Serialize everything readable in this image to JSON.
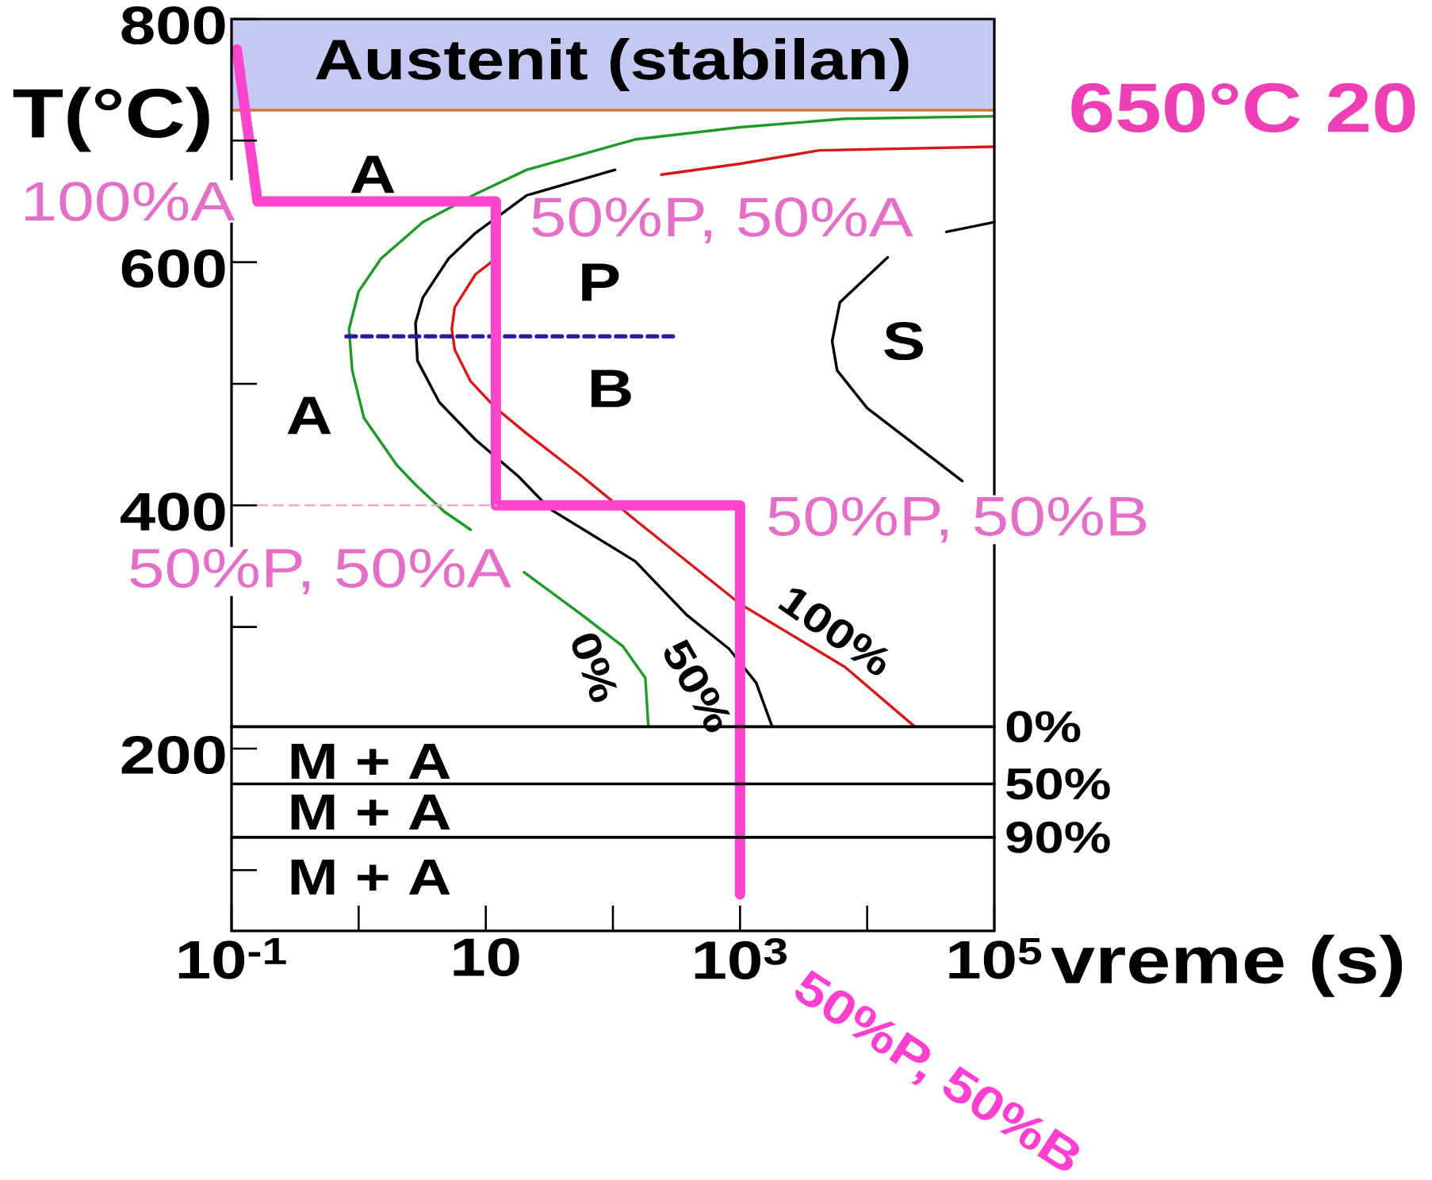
{
  "chart_data": {
    "type": "line",
    "xlabel": "vreme (s)",
    "ylabel": "T(°C)",
    "log": "x",
    "xlim": [
      0.1,
      100000
    ],
    "ylim": [
      50,
      800
    ],
    "xticks": [
      {
        "value": 0.1,
        "label": "10$^{-1}$"
      },
      {
        "value": 1,
        "label": null
      },
      10,
      {
        "value": 100,
        "label": null
      },
      {
        "value": 1000,
        "label": "10$^{3}$"
      },
      {
        "value": 10000,
        "label": null
      },
      {
        "value": 100000,
        "label": "10$^{5}$"
      }
    ],
    "yticks": [
      {
        "value": 100,
        "label": null
      },
      200,
      {
        "value": 300,
        "label": null
      },
      400,
      {
        "value": 500,
        "label": null
      },
      600,
      {
        "value": 700,
        "label": null
      },
      800
    ],
    "series": [
      {
        "name": "0%",
        "color": "#1f9a2a",
        "x": [
          100000,
          6700,
          1000,
          150,
          21,
          8.3,
          3.2,
          1.5,
          1.0,
          0.84,
          0.89,
          1.1,
          2.0,
          2.8,
          4.7,
          7.6,
          12,
          20,
          57,
          120,
          180,
          190
        ],
        "values": [
          720,
          718,
          711,
          701,
          676,
          656,
          633,
          603,
          576,
          545,
          511,
          472,
          433,
          417,
          395,
          380,
          null,
          345,
          310,
          284,
          258,
          218
        ]
      },
      {
        "name": "50%",
        "color": "#000000",
        "x": [
          104,
          21,
          8.3,
          5.1,
          3.2,
          2.8,
          2.9,
          4.3,
          8.3,
          18,
          32,
          150,
          380,
          820,
          1340,
          1790
        ],
        "values": [
          676,
          655,
          624,
          603,
          571,
          550,
          519,
          485,
          454,
          424,
          397,
          354,
          310,
          282,
          254,
          218
        ]
      },
      {
        "name": "100%",
        "color": "#d81818",
        "x": [
          100000,
          4200,
          1000,
          240,
          50,
          12,
          8.3,
          5.7,
          5.4,
          5.7,
          7.6,
          12,
          21,
          57,
          150,
          1000,
          6700,
          23700
        ],
        "values": [
          695,
          692,
          681,
          672,
          null,
          603,
          590,
          563,
          545,
          528,
          502,
          480,
          459,
          424,
          388,
          319,
          267,
          218
        ]
      },
      {
        "color": "#000000",
        "x": [
          100000,
          42000,
          30000,
          14500,
          6100,
          5300,
          5800,
          10000,
          56000
        ],
        "values": [
          633,
          625,
          null,
          604,
          567,
          535,
          511,
          480,
          420
        ]
      },
      {
        "color": "#2b1a9e",
        "line_style": "dashed",
        "x": [
          0.8,
          320
        ],
        "values": [
          539,
          539
        ]
      },
      {
        "color": "#ff45cc",
        "x": [
          0.11,
          0.16,
          12,
          12,
          1000,
          1000
        ],
        "values": [
          775,
          650,
          650,
          400,
          400,
          80
        ]
      },
      {
        "color": "#f3a5da",
        "line_style": "dashed",
        "x": [
          0.16,
          12
        ],
        "values": [
          400,
          400
        ]
      },
      {
        "name": "0%",
        "color": "#000000",
        "x": [
          0.1,
          100000
        ],
        "values": [
          218,
          218
        ]
      },
      {
        "name": "50%",
        "color": "#000000",
        "x": [
          0.1,
          100000
        ],
        "values": [
          171,
          171
        ]
      },
      {
        "name": "90%",
        "color": "#000000",
        "x": [
          0.1,
          100000
        ],
        "values": [
          127,
          127
        ]
      }
    ],
    "bands": [
      {
        "axis": "y",
        "from": 725,
        "to": 800,
        "label": "Austenit (stabilan)",
        "color": "#c5c8f2"
      }
    ],
    "ref_lines": [
      {
        "axis": "y",
        "value": 725,
        "color": "#d2773a"
      }
    ],
    "annotations": [
      "A",
      "P",
      "B",
      "A",
      "S",
      "M + A",
      "M + A",
      "M + A",
      {
        "text": "100%A",
        "x": 0.16,
        "y": 650
      },
      {
        "text": "50%P, 50%A",
        "x": 12,
        "y": 650
      },
      {
        "text": "50%P, 50%A",
        "x": 12,
        "y": 400
      },
      {
        "text": "50%P, 50%B",
        "x": 1000,
        "y": 400
      },
      {
        "text": "50%P, 50%B",
        "x": 1000,
        "y": 80
      },
      "650°C 20"
    ]
  }
}
